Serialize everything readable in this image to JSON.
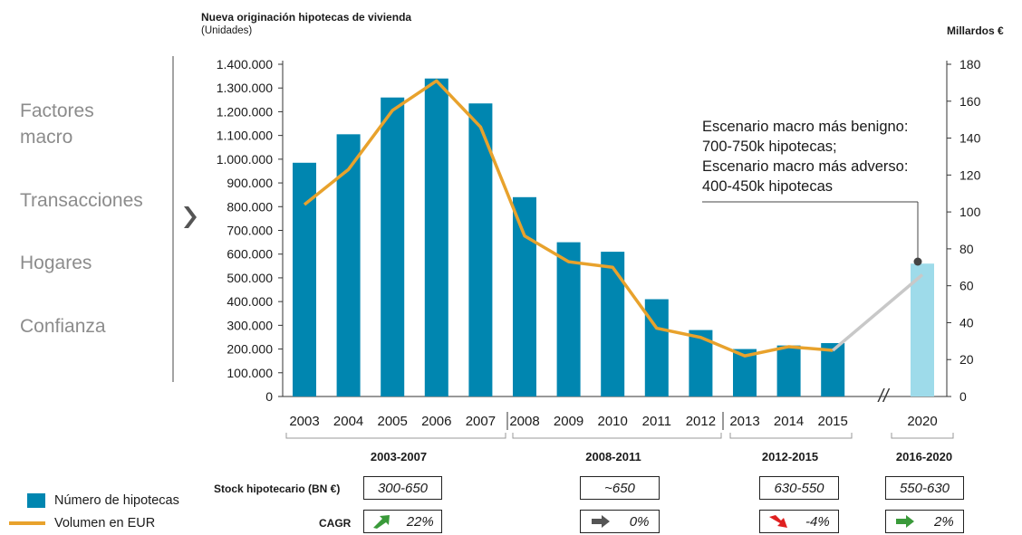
{
  "left_factors": [
    "Factores\nmacro",
    "Transacciones",
    "Hogares",
    "Confianza"
  ],
  "chart_data": {
    "type": "bar",
    "title": "Nueva originación hipotecas de vivienda",
    "subtitle": "(Unidades)",
    "y2label": "Millardos €",
    "categories": [
      "2003",
      "2004",
      "2005",
      "2006",
      "2007",
      "2008",
      "2009",
      "2010",
      "2011",
      "2012",
      "2013",
      "2014",
      "2015",
      "2020"
    ],
    "series": [
      {
        "name": "Número de hipotecas",
        "type": "bar",
        "values": [
          985000,
          1105000,
          1260000,
          1340000,
          1235000,
          840000,
          650000,
          610000,
          410000,
          280000,
          200000,
          215000,
          225000,
          560000
        ]
      },
      {
        "name": "Volumen en EUR",
        "type": "line",
        "axis": "right",
        "values": [
          104,
          123,
          155,
          171,
          146,
          87,
          73,
          70,
          37,
          32,
          22,
          27,
          25,
          66
        ]
      }
    ],
    "ylim": [
      0,
      1400000
    ],
    "y_ticks": [
      "0",
      "100.000",
      "200.000",
      "300.000",
      "400.000",
      "500.000",
      "600.000",
      "700.000",
      "800.000",
      "900.000",
      "1.000.000",
      "1.100.000",
      "1.200.000",
      "1.300.000",
      "1.400.000"
    ],
    "y2lim": [
      0,
      180
    ],
    "y2_ticks": [
      "0",
      "20",
      "40",
      "60",
      "80",
      "100",
      "120",
      "140",
      "160",
      "180"
    ],
    "annotation": "Escenario macro más benigno:\n700-750k hipotecas;\nEscenario macro más adverso:\n400-450k hipotecas",
    "axis_break": "//",
    "colors": {
      "bar": "#0086B0",
      "bar_forecast": "#9EDBEA",
      "line": "#E8A22C",
      "line_forecast": "#C8C8C8"
    }
  },
  "periods": [
    "2003-2007",
    "2008-2011",
    "2012-2015",
    "2016-2020"
  ],
  "rows": {
    "stock_label": "Stock hipotecario (BN €)",
    "stock_values": [
      "300-650",
      "~650",
      "630-550",
      "550-630"
    ],
    "cagr_label": "CAGR",
    "cagr_values": [
      "22%",
      "0%",
      "-4%",
      "2%"
    ]
  },
  "legend": {
    "bars": "Número de hipotecas",
    "line": "Volumen en EUR"
  }
}
